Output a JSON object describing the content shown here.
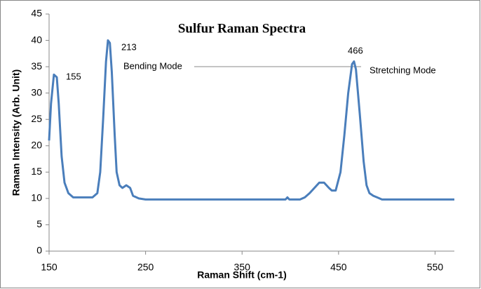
{
  "chart_data": {
    "type": "line",
    "title": "Sulfur Raman Spectra",
    "x_label": "Raman Shift (cm-1)",
    "y_label": "Raman Intensity (Arb. Unit)",
    "annotations": [
      "155",
      "213",
      "Bending Mode",
      "466",
      "Stretching Mode"
    ],
    "x": [
      150,
      152,
      155,
      158,
      160,
      163,
      166,
      170,
      175,
      195,
      200,
      203,
      206,
      209,
      211,
      213,
      215,
      218,
      220,
      223,
      226,
      230,
      234,
      237,
      243,
      250,
      395,
      397,
      399,
      410,
      415,
      420,
      425,
      430,
      435,
      440,
      443,
      447,
      452,
      456,
      460,
      464,
      466,
      468,
      472,
      476,
      479,
      482,
      486,
      490,
      495,
      570
    ],
    "series": [
      {
        "name": "Sulfur",
        "color": "#4a7ebb",
        "values": [
          21,
          28,
          33.5,
          33,
          28,
          18,
          13,
          11,
          10.2,
          10.2,
          11,
          15,
          25,
          36,
          40,
          39.5,
          34,
          22,
          15,
          12.5,
          12,
          12.5,
          12,
          10.5,
          10,
          9.8,
          9.8,
          10.2,
          9.8,
          9.8,
          10.2,
          11,
          12,
          13,
          13,
          12,
          11.5,
          11.5,
          15,
          22,
          30,
          35.5,
          36,
          34.5,
          26,
          17,
          12.5,
          11,
          10.5,
          10.2,
          9.8,
          9.8
        ]
      }
    ],
    "xlim": [
      150,
      570
    ],
    "ylim": [
      0,
      45
    ],
    "xticks": [
      150,
      250,
      350,
      450,
      550
    ],
    "yticks": [
      0,
      5,
      10,
      15,
      20,
      25,
      30,
      35,
      40,
      45
    ]
  }
}
